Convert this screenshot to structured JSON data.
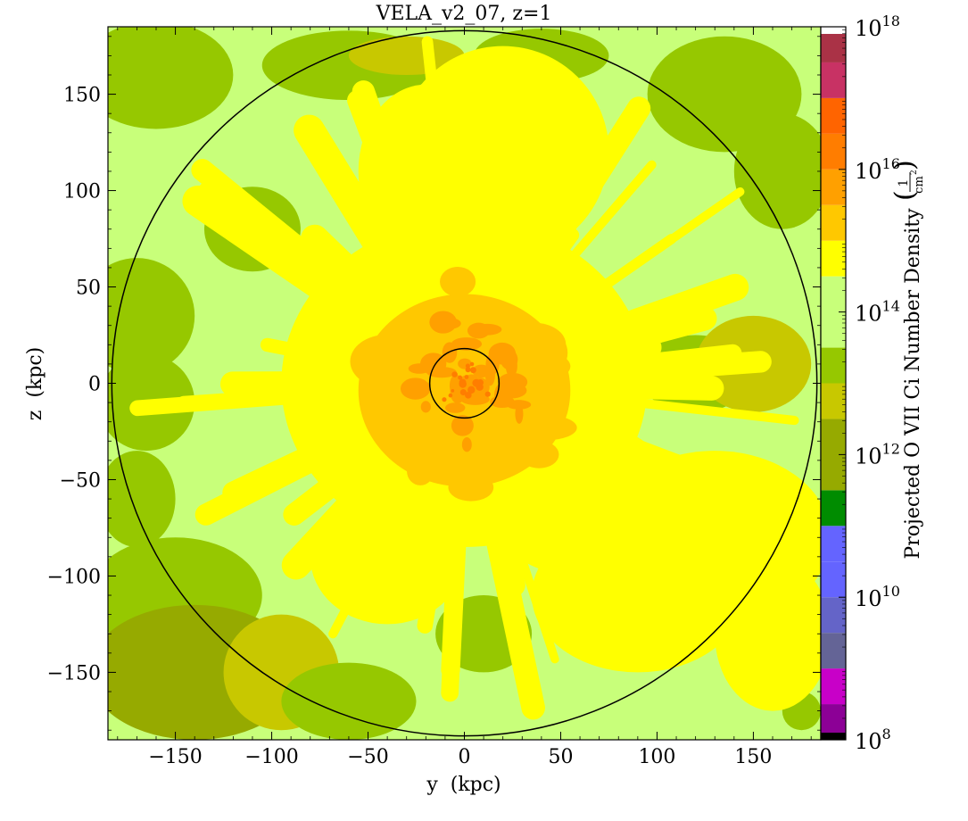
{
  "chart_data": {
    "type": "heatmap",
    "title": "VELA_v2_07, z=1",
    "xlabel": "y  (kpc)",
    "ylabel": "z  (kpc)",
    "xlim": [
      -185,
      185
    ],
    "ylim": [
      -185,
      185
    ],
    "x_ticks": [
      -150,
      -100,
      -50,
      0,
      50,
      100,
      150
    ],
    "y_ticks": [
      -150,
      -100,
      -50,
      0,
      50,
      100,
      150
    ],
    "x_tick_labels": [
      "−150",
      "−100",
      "−50",
      "0",
      "50",
      "100",
      "150"
    ],
    "y_tick_labels": [
      "−150",
      "−100",
      "−50",
      "0",
      "50",
      "100",
      "150"
    ],
    "colorbar": {
      "label": "Projected O VII Ci Number Density",
      "unit_numerator": "1",
      "unit_denominator": "cm",
      "unit_exponent": "2",
      "scale": "log",
      "range_exponents": [
        8,
        18
      ],
      "tick_exponents": [
        8,
        10,
        12,
        14,
        16,
        18
      ],
      "tick_base": "10",
      "bands": [
        {
          "from": 8.0,
          "to": 8.1,
          "color": "#000000"
        },
        {
          "from": 8.1,
          "to": 8.5,
          "color": "#8c0096"
        },
        {
          "from": 8.5,
          "to": 9.0,
          "color": "#c800c8"
        },
        {
          "from": 9.0,
          "to": 9.5,
          "color": "#646496"
        },
        {
          "from": 9.5,
          "to": 10.0,
          "color": "#6464c8"
        },
        {
          "from": 10.0,
          "to": 10.5,
          "color": "#6464ff"
        },
        {
          "from": 10.5,
          "to": 11.0,
          "color": "#6464ff"
        },
        {
          "from": 11.0,
          "to": 11.5,
          "color": "#008c00"
        },
        {
          "from": 11.5,
          "to": 12.5,
          "color": "#96aa00"
        },
        {
          "from": 12.5,
          "to": 13.0,
          "color": "#c8c800"
        },
        {
          "from": 13.0,
          "to": 13.5,
          "color": "#96c800"
        },
        {
          "from": 13.5,
          "to": 14.5,
          "color": "#c8ff7a"
        },
        {
          "from": 14.5,
          "to": 15.0,
          "color": "#ffff00"
        },
        {
          "from": 15.0,
          "to": 15.5,
          "color": "#ffc800"
        },
        {
          "from": 15.5,
          "to": 16.0,
          "color": "#ffa000"
        },
        {
          "from": 16.0,
          "to": 16.5,
          "color": "#ff7d00"
        },
        {
          "from": 16.5,
          "to": 17.0,
          "color": "#ff6400"
        },
        {
          "from": 17.0,
          "to": 17.5,
          "color": "#c83264"
        },
        {
          "from": 17.5,
          "to": 17.9,
          "color": "#aa3246"
        },
        {
          "from": 17.9,
          "to": 18.0,
          "color": "#ffffff"
        }
      ]
    },
    "circles": [
      {
        "center": [
          0,
          0
        ],
        "radius_kpc": 183
      },
      {
        "center": [
          0,
          0
        ],
        "radius_kpc": 18
      }
    ],
    "field_description_levels": {
      "background": "#c8ff7a",
      "outer_patches": "#96c800",
      "lower_left_patches": "#96aa00",
      "mid_patches": "#c8c800",
      "inner_region": "#ffff00",
      "core_region": "#ffc800",
      "center_region": "#ffa000",
      "peak": "#ff7d00"
    }
  }
}
